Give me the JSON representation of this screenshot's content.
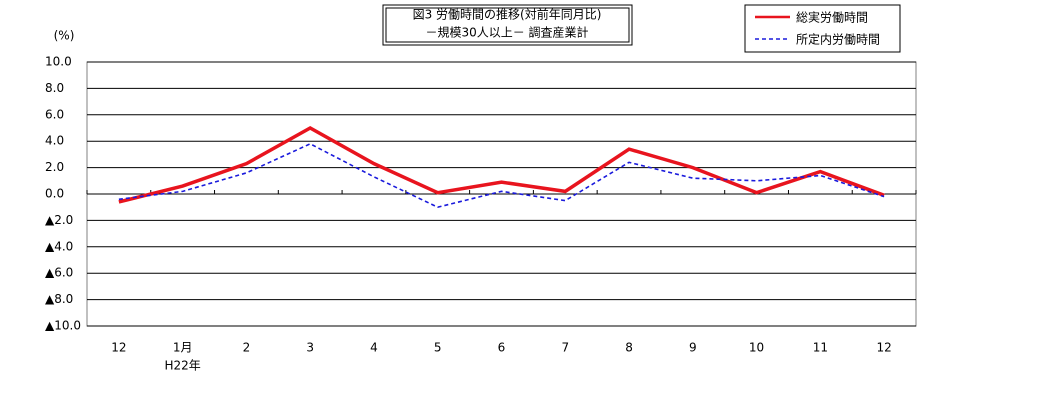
{
  "chart_data": {
    "type": "line",
    "title": [
      "図3 労働時間の推移(対前年同月比)",
      "－規模30人以上－ 調査産業計"
    ],
    "y_unit": "(%)",
    "categories": [
      "12",
      "1月",
      "2",
      "3",
      "4",
      "5",
      "6",
      "7",
      "8",
      "9",
      "10",
      "11",
      "12"
    ],
    "year_label": "H22年",
    "series": [
      {
        "name": "総実労働時間",
        "color": "#e8141e",
        "dash": false,
        "values": [
          -0.6,
          0.6,
          2.3,
          5.0,
          2.3,
          0.1,
          0.9,
          0.2,
          3.4,
          2.0,
          0.1,
          1.7,
          -0.1
        ]
      },
      {
        "name": "所定内労働時間",
        "color": "#1a1adc",
        "dash": true,
        "values": [
          -0.4,
          0.2,
          1.6,
          3.8,
          1.3,
          -1.0,
          0.2,
          -0.5,
          2.4,
          1.2,
          1.0,
          1.4,
          -0.2
        ]
      }
    ],
    "ylim": [
      -10,
      10
    ],
    "yticks": [
      {
        "value": 10,
        "label": "10.0"
      },
      {
        "value": 8,
        "label": "8.0"
      },
      {
        "value": 6,
        "label": "6.0"
      },
      {
        "value": 4,
        "label": "4.0"
      },
      {
        "value": 2,
        "label": "2.0"
      },
      {
        "value": 0,
        "label": "0.0"
      },
      {
        "value": -2,
        "label": "▲2.0"
      },
      {
        "value": -4,
        "label": "▲4.0"
      },
      {
        "value": -6,
        "label": "▲6.0"
      },
      {
        "value": -8,
        "label": "▲8.0"
      },
      {
        "value": -10,
        "label": "▲10.0"
      }
    ],
    "grid": true
  }
}
